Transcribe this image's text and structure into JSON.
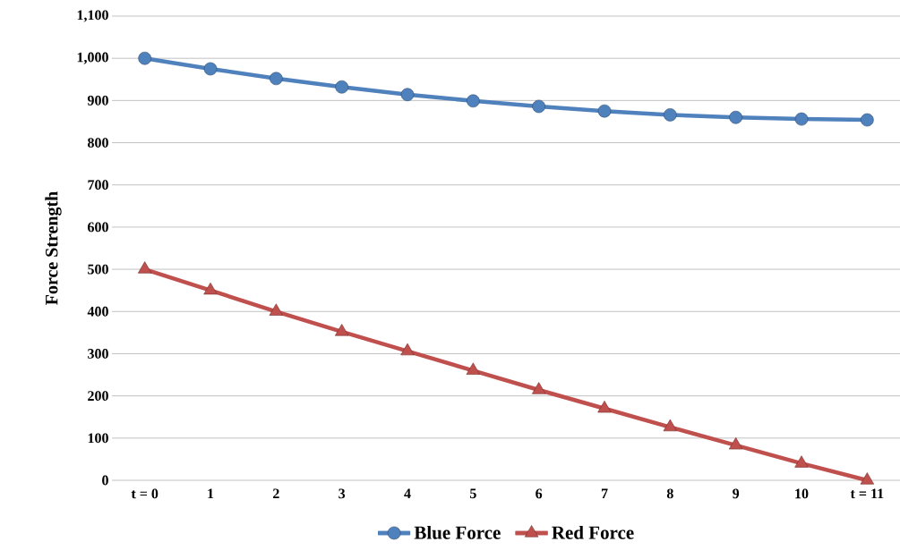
{
  "chart_data": {
    "type": "line",
    "ylabel": "Force Strength",
    "categories": [
      "t = 0",
      "1",
      "2",
      "3",
      "4",
      "5",
      "6",
      "7",
      "8",
      "9",
      "10",
      "t = 11"
    ],
    "series": [
      {
        "name": "Blue Force",
        "color": "#4f81bd",
        "marker": "circle",
        "values": [
          1000,
          975,
          952,
          932,
          914,
          899,
          886,
          875,
          866,
          860,
          856,
          854
        ]
      },
      {
        "name": "Red Force",
        "color": "#c0504d",
        "marker": "triangle",
        "values": [
          500,
          450,
          400,
          352,
          306,
          260,
          214,
          170,
          126,
          83,
          40,
          0
        ]
      }
    ],
    "ylim": [
      0,
      1100
    ],
    "yticks": [
      0,
      100,
      200,
      300,
      400,
      500,
      600,
      700,
      800,
      900,
      {
        "value": 1000,
        "label": "1,000"
      },
      {
        "value": 1100,
        "label": "1,100"
      }
    ],
    "grid": "y",
    "legend": "bottom",
    "line_style": "solid"
  }
}
